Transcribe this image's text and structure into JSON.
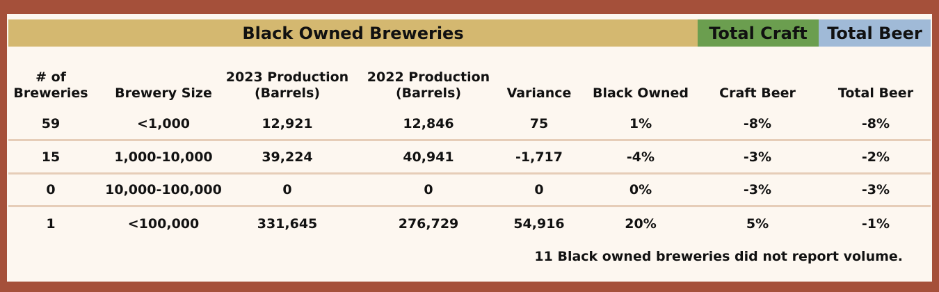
{
  "header": {
    "title": "Black Owned Breweries",
    "craft": "Total Craft",
    "beer": "Total Beer"
  },
  "table": {
    "columns": [
      "# of Breweries",
      "Brewery Size",
      "2023 Production (Barrels)",
      "2022 Production (Barrels)",
      "Variance",
      "Black Owned",
      "Craft Beer",
      "Total Beer"
    ],
    "rows": [
      [
        "59",
        "<1,000",
        "12,921",
        "12,846",
        "75",
        "1%",
        "-8%",
        "-8%"
      ],
      [
        "15",
        "1,000-10,000",
        "39,224",
        "40,941",
        "-1,717",
        "-4%",
        "-3%",
        "-2%"
      ],
      [
        "0",
        "10,000-100,000",
        "0",
        "0",
        "0",
        "0%",
        "-3%",
        "-3%"
      ],
      [
        "1",
        "<100,000",
        "331,645",
        "276,729",
        "54,916",
        "20%",
        "5%",
        "-1%"
      ]
    ]
  },
  "note": "11 Black owned breweries did not report volume."
}
